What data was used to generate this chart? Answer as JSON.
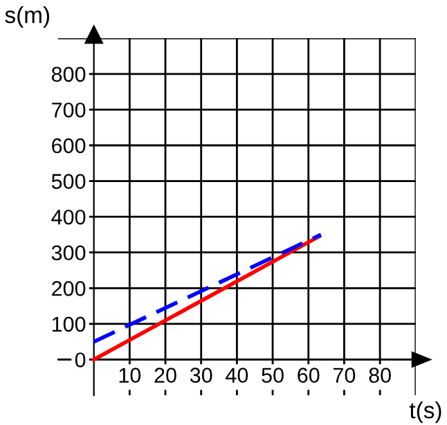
{
  "chart_data": {
    "type": "line",
    "xlabel": "t(s)",
    "ylabel": "s(m)",
    "series": [
      {
        "color": "#ff0000",
        "x": [
          0,
          63
        ],
        "values": [
          0,
          345
        ],
        "line_style": "solid"
      },
      {
        "color": "#0000ff",
        "x": [
          0,
          63.5
        ],
        "values": [
          50,
          350
        ],
        "line_style": "dashed"
      }
    ],
    "xlim": [
      -10,
      90
    ],
    "ylim": [
      -100,
      900
    ],
    "xticks": [
      10,
      20,
      30,
      40,
      50,
      60,
      70,
      80,
      {
        "value": 90,
        "label": null
      }
    ],
    "yticks": [
      0,
      100,
      200,
      300,
      400,
      500,
      600,
      700,
      800,
      {
        "value": 900,
        "label": null
      }
    ],
    "grid": true,
    "legend": false
  }
}
